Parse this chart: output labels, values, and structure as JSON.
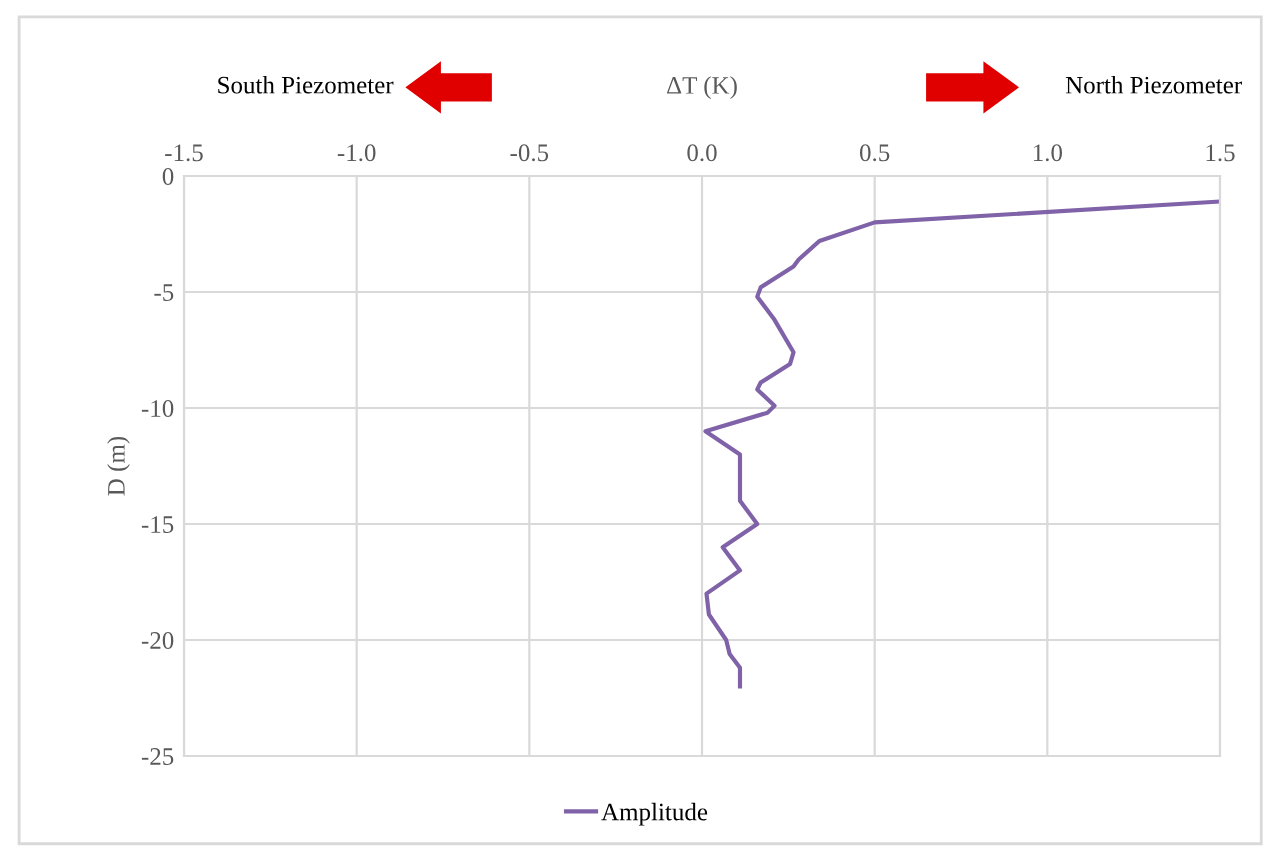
{
  "chart_data": {
    "type": "line",
    "xlabel": "ΔT (K)",
    "ylabel": "D (m)",
    "annotations": [
      "South Piezometer",
      "North Piezometer"
    ],
    "xlim": [
      -1.5,
      1.5
    ],
    "xticks": [
      {
        "value": -1.5,
        "label": "-1.5"
      },
      {
        "value": -1.0,
        "label": "-1.0"
      },
      {
        "value": -0.5,
        "label": "-0.5"
      },
      {
        "value": 0.0,
        "label": "0.0"
      },
      {
        "value": 0.5,
        "label": "0.5"
      },
      {
        "value": 1.0,
        "label": "1.0"
      },
      {
        "value": 1.5,
        "label": "1.5"
      }
    ],
    "ylim": [
      -25,
      0
    ],
    "yticks": [
      -25,
      -20,
      -15,
      -10,
      -5,
      0
    ],
    "grid": true,
    "legend": "bottom",
    "marker": "none",
    "line_style": "solid",
    "series": [
      {
        "name": "Amplitude",
        "color": "#7f62a8",
        "x": [
          1.5,
          0.5,
          0.34,
          0.28,
          0.265,
          0.17,
          0.16,
          0.21,
          0.265,
          0.255,
          0.17,
          0.16,
          0.21,
          0.19,
          0.01,
          0.11,
          0.11,
          0.16,
          0.06,
          0.11,
          0.013,
          0.02,
          0.07,
          0.08,
          0.11,
          0.11
        ],
        "values": [
          -1.1,
          -2.0,
          -2.8,
          -3.6,
          -3.9,
          -4.8,
          -5.2,
          -6.2,
          -7.6,
          -8.1,
          -8.9,
          -9.2,
          -9.9,
          -10.2,
          -11.0,
          -12.0,
          -14.0,
          -15.0,
          -16.0,
          -17.0,
          -18.0,
          -18.9,
          -20.0,
          -20.6,
          -21.2,
          -22.0
        ]
      }
    ]
  }
}
